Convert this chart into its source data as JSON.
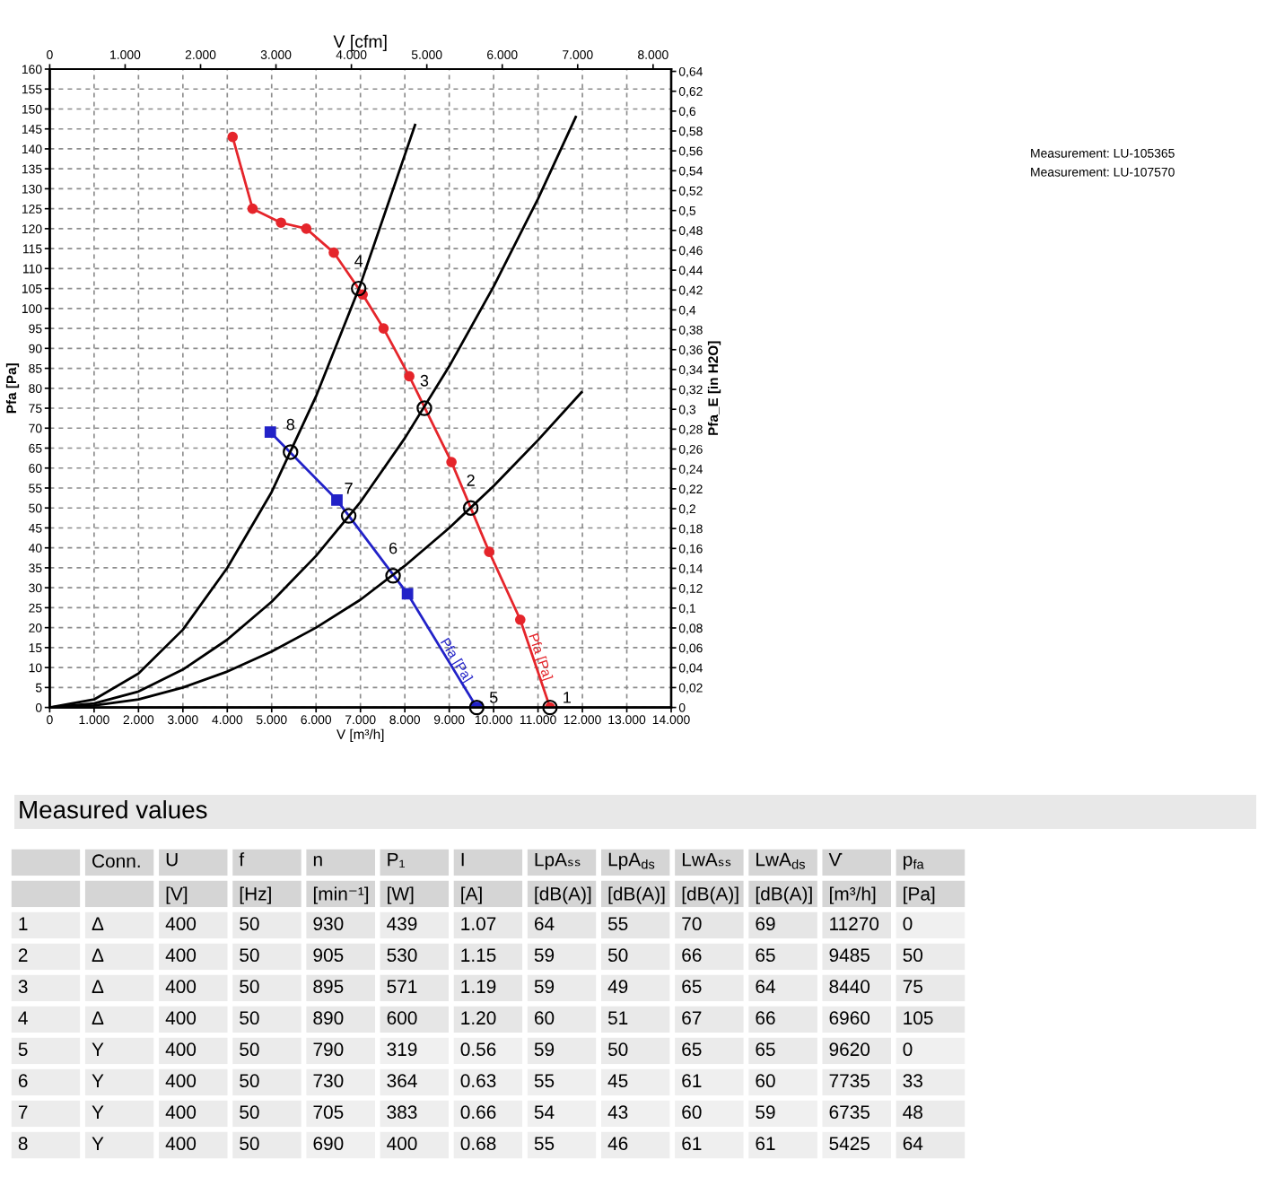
{
  "chart_data": [
    {
      "type": "line",
      "xlabel": "V [m³/h]",
      "ylabel": "Pfa [Pa]",
      "y2label": "Pfa_E [in H2O]",
      "x2label": "V [cfm]",
      "xlim": [
        0,
        14000
      ],
      "xticks": [
        0,
        {
          "value": 1000,
          "label": "1.000"
        },
        {
          "value": 2000,
          "label": "2.000"
        },
        {
          "value": 3000,
          "label": "3.000"
        },
        {
          "value": 4000,
          "label": "4.000"
        },
        {
          "value": 5000,
          "label": "5.000"
        },
        {
          "value": 6000,
          "label": "6.000"
        },
        {
          "value": 7000,
          "label": "7.000"
        },
        {
          "value": 8000,
          "label": "8.000"
        },
        {
          "value": 9000,
          "label": "9.000"
        },
        {
          "value": 10000,
          "label": "10.000"
        },
        {
          "value": 11000,
          "label": "11.000"
        },
        {
          "value": 12000,
          "label": "12.000"
        },
        {
          "value": 13000,
          "label": "13.000"
        },
        {
          "value": 14000,
          "label": "14.000"
        }
      ],
      "x2lim": [
        0,
        8240
      ],
      "x2ticks": [
        0,
        {
          "value": 1000,
          "label": "1.000"
        },
        {
          "value": 2000,
          "label": "2.000"
        },
        {
          "value": 3000,
          "label": "3.000"
        },
        {
          "value": 4000,
          "label": "4.000"
        },
        {
          "value": 5000,
          "label": "5.000"
        },
        {
          "value": 6000,
          "label": "6.000"
        },
        {
          "value": 7000,
          "label": "7.000"
        },
        {
          "value": 8000,
          "label": "8.000"
        }
      ],
      "ylim": [
        0,
        160
      ],
      "yticks": [
        0,
        5,
        10,
        15,
        20,
        25,
        30,
        35,
        40,
        45,
        50,
        55,
        60,
        65,
        70,
        75,
        80,
        85,
        90,
        95,
        100,
        105,
        110,
        115,
        120,
        125,
        130,
        135,
        140,
        145,
        150,
        155,
        160
      ],
      "y2lim": [
        0,
        0.6423
      ],
      "y2ticks": [
        0,
        {
          "value": 0.02,
          "label": "0,02"
        },
        {
          "value": 0.04,
          "label": "0,04"
        },
        {
          "value": 0.06,
          "label": "0,06"
        },
        {
          "value": 0.08,
          "label": "0,08"
        },
        {
          "value": 0.1,
          "label": "0,1"
        },
        {
          "value": 0.12,
          "label": "0,12"
        },
        {
          "value": 0.14,
          "label": "0,14"
        },
        {
          "value": 0.16,
          "label": "0,16"
        },
        {
          "value": 0.18,
          "label": "0,18"
        },
        {
          "value": 0.2,
          "label": "0,2"
        },
        {
          "value": 0.22,
          "label": "0,22"
        },
        {
          "value": 0.24,
          "label": "0,24"
        },
        {
          "value": 0.26,
          "label": "0,26"
        },
        {
          "value": 0.28,
          "label": "0,28"
        },
        {
          "value": 0.3,
          "label": "0,3"
        },
        {
          "value": 0.32,
          "label": "0,32"
        },
        {
          "value": 0.34,
          "label": "0,34"
        },
        {
          "value": 0.36,
          "label": "0,36"
        },
        {
          "value": 0.38,
          "label": "0,38"
        },
        {
          "value": 0.4,
          "label": "0,4"
        },
        {
          "value": 0.42,
          "label": "0,42"
        },
        {
          "value": 0.44,
          "label": "0,44"
        },
        {
          "value": 0.46,
          "label": "0,46"
        },
        {
          "value": 0.48,
          "label": "0,48"
        },
        {
          "value": 0.5,
          "label": "0,5"
        },
        {
          "value": 0.52,
          "label": "0,52"
        },
        {
          "value": 0.54,
          "label": "0,54"
        },
        {
          "value": 0.56,
          "label": "0,56"
        },
        {
          "value": 0.58,
          "label": "0,58"
        },
        {
          "value": 0.6,
          "label": "0,6"
        },
        {
          "value": 0.62,
          "label": "0,62"
        },
        {
          "value": 0.64,
          "label": "0,64"
        }
      ],
      "grid": true,
      "series": [
        {
          "name": "Pfa [Pa]",
          "color": "#e5252b",
          "marker": "circle",
          "x": [
            4120,
            4570,
            5210,
            5780,
            6400,
            7050,
            7520,
            8100,
            9050,
            9900,
            10600,
            11270
          ],
          "values": [
            143,
            125,
            121.5,
            120,
            114,
            103.5,
            95,
            83,
            61.5,
            39,
            22,
            0
          ]
        },
        {
          "name": "Pfa [Pa]",
          "color": "#2222c8",
          "marker": "square",
          "x": [
            4970,
            6470,
            8060,
            9620
          ],
          "values": [
            69,
            52,
            28.5,
            0
          ]
        },
        {
          "color": "#000000",
          "marker": "none",
          "x": [
            0,
            1000,
            2000,
            3000,
            4000,
            5000,
            6000,
            7000,
            8000,
            8230
          ],
          "values": [
            0,
            2,
            8.5,
            19.5,
            35,
            54,
            78,
            106,
            138.5,
            146
          ]
        },
        {
          "color": "#000000",
          "marker": "none",
          "x": [
            0,
            1000,
            2000,
            3000,
            4000,
            5000,
            6000,
            7000,
            8000,
            9000,
            10000,
            11000,
            11850
          ],
          "values": [
            0,
            1,
            4,
            9.5,
            17,
            26.5,
            38,
            51.5,
            67.5,
            85.5,
            105.5,
            127.5,
            148
          ]
        },
        {
          "color": "#000000",
          "marker": "none",
          "x": [
            0,
            1000,
            2000,
            3000,
            4000,
            5000,
            6000,
            7000,
            8000,
            9000,
            10000,
            11000,
            11980
          ],
          "values": [
            0,
            0.5,
            2,
            5,
            9,
            14,
            20,
            27,
            35.5,
            45,
            55.5,
            67,
            79
          ]
        },
        {
          "type": "scatter",
          "color": "#000000",
          "marker": "circle",
          "x": [
            11270,
            9485,
            8440,
            6960,
            9620,
            7735,
            6735,
            5425
          ],
          "values": [
            0,
            50,
            75,
            105,
            0,
            33,
            48,
            64
          ]
        }
      ],
      "annotations": [
        {
          "text": "1",
          "x": 11270,
          "y": 0
        },
        {
          "text": "2",
          "x": 9485,
          "y": 50
        },
        {
          "text": "3",
          "x": 8440,
          "y": 75
        },
        {
          "text": "4",
          "x": 6960,
          "y": 105
        },
        {
          "text": "5",
          "x": 9620,
          "y": 0
        },
        {
          "text": "6",
          "x": 7735,
          "y": 33
        },
        {
          "text": "7",
          "x": 6735,
          "y": 48
        },
        {
          "text": "8",
          "x": 5425,
          "y": 64
        },
        "Measurement: LU-105365",
        "Measurement: LU-107570"
      ]
    },
    {
      "type": "heatmap",
      "title": "Measured values",
      "categories": [
        "Conn.",
        "U\n[V]",
        "f\n[Hz]",
        "n\n[min⁻¹]",
        "P₁\n[W]",
        "I\n[A]",
        "LpAₛₛ\n[dB(A)]",
        "LpA$_{ds}$\n[dB(A)]",
        "LwAₛₛ\n[dB(A)]",
        "LwA$_{ds}$\n[dB(A)]",
        "V̇\n[m³/h]",
        "p$_{fa}$\n[Pa]"
      ],
      "y_categories": [
        "1",
        "2",
        "3",
        "4",
        "5",
        "6",
        "7",
        "8"
      ],
      "cells": [
        [
          null,
          400,
          50,
          930,
          439,
          1.07,
          64,
          55,
          70,
          69,
          11270,
          0
        ],
        [
          null,
          400,
          50,
          905,
          530,
          1.15,
          59,
          50,
          66,
          65,
          9485,
          50
        ],
        [
          null,
          400,
          50,
          895,
          571,
          1.19,
          59,
          49,
          65,
          64,
          8440,
          75
        ],
        [
          null,
          400,
          50,
          890,
          600,
          1.2,
          60,
          51,
          67,
          66,
          6960,
          105
        ],
        [
          null,
          400,
          50,
          790,
          319,
          0.56,
          59,
          50,
          65,
          65,
          9620,
          0
        ],
        [
          null,
          400,
          50,
          730,
          364,
          0.63,
          55,
          45,
          61,
          60,
          7735,
          33
        ],
        [
          null,
          400,
          50,
          705,
          383,
          0.66,
          54,
          43,
          60,
          59,
          6735,
          48
        ],
        [
          null,
          400,
          50,
          690,
          400,
          0.68,
          55,
          46,
          61,
          61,
          5425,
          64
        ]
      ],
      "cell_labels": [
        [
          "Δ",
          "400",
          "50",
          "930",
          "439",
          "1.07",
          "64",
          "55",
          "70",
          "69",
          "11270",
          "0"
        ],
        [
          "Δ",
          "400",
          "50",
          "905",
          "530",
          "1.15",
          "59",
          "50",
          "66",
          "65",
          "9485",
          "50"
        ],
        [
          "Δ",
          "400",
          "50",
          "895",
          "571",
          "1.19",
          "59",
          "49",
          "65",
          "64",
          "8440",
          "75"
        ],
        [
          "Δ",
          "400",
          "50",
          "890",
          "600",
          "1.20",
          "60",
          "51",
          "67",
          "66",
          "6960",
          "105"
        ],
        [
          "Y",
          "400",
          "50",
          "790",
          "319",
          "0.56",
          "59",
          "50",
          "65",
          "65",
          "9620",
          "0"
        ],
        [
          "Y",
          "400",
          "50",
          "730",
          "364",
          "0.63",
          "55",
          "45",
          "61",
          "60",
          "7735",
          "33"
        ],
        [
          "Y",
          "400",
          "50",
          "705",
          "383",
          "0.66",
          "54",
          "43",
          "60",
          "59",
          "6735",
          "48"
        ],
        [
          "Y",
          "400",
          "50",
          "690",
          "400",
          "0.68",
          "55",
          "46",
          "61",
          "61",
          "5425",
          "64"
        ]
      ]
    }
  ]
}
